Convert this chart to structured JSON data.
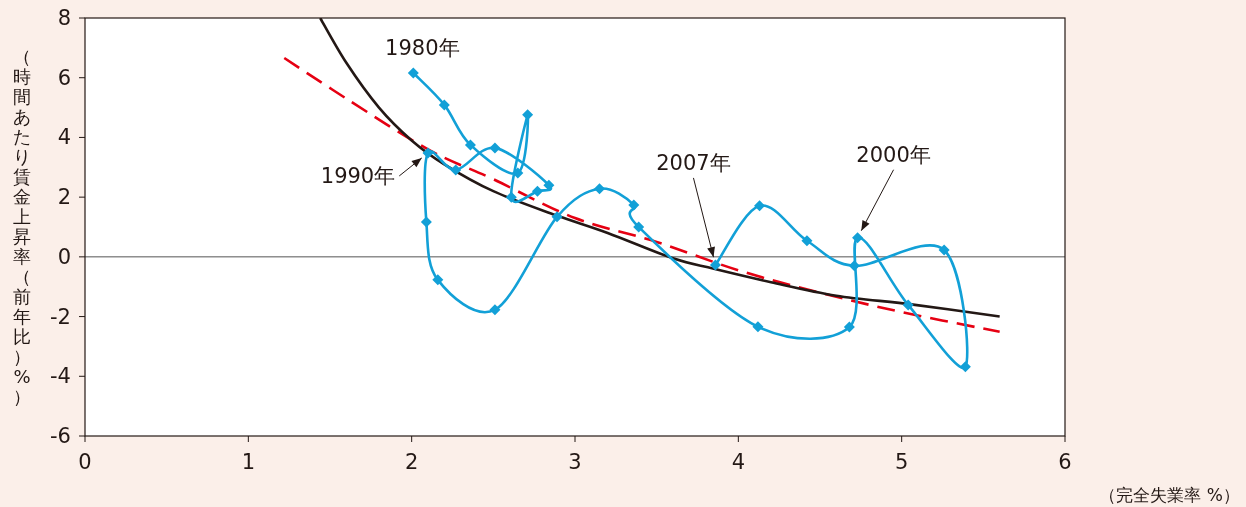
{
  "chart_data": {
    "type": "line",
    "xlabel": "（完全失業率 %）",
    "ylabel": "（時間あたり賃金上昇率（前年比）%）",
    "xlim": [
      0,
      6
    ],
    "ylim": [
      -6,
      8
    ],
    "xticks": [
      0,
      1,
      2,
      3,
      4,
      5,
      6
    ],
    "yticks": [
      -6,
      -4,
      -2,
      0,
      2,
      4,
      6,
      8
    ],
    "grid": false,
    "ref_lines": [
      {
        "axis": "y",
        "value": 0,
        "color": "#555555"
      }
    ],
    "series": [
      {
        "color": "#12a0d7",
        "marker": "diamond",
        "line_style": "solid",
        "x": [
          2.01,
          2.2,
          2.36,
          2.65,
          2.71,
          2.61,
          2.77,
          2.84,
          2.51,
          2.27,
          2.1,
          2.09,
          2.16,
          2.51,
          2.89,
          3.15,
          3.36,
          3.39,
          4.12,
          4.68,
          4.73,
          5.04,
          5.39,
          5.26,
          4.71,
          4.42,
          4.13,
          3.86
        ],
        "values": [
          6.16,
          5.09,
          3.75,
          2.81,
          4.76,
          2.0,
          2.2,
          2.4,
          3.65,
          2.91,
          3.48,
          1.17,
          -0.77,
          -1.77,
          1.34,
          2.28,
          1.74,
          1.0,
          -2.34,
          -2.35,
          0.64,
          -1.61,
          -3.68,
          0.23,
          -0.3,
          0.54,
          1.71,
          -0.27
        ]
      },
      {
        "color": "#231815",
        "marker": "none",
        "line_style": "solid",
        "x": [
          1.44,
          1.6,
          1.8,
          2.0,
          2.2,
          2.5,
          2.88,
          3.2,
          3.6,
          3.85,
          4.2,
          4.6,
          5.07,
          5.6
        ],
        "values": [
          8,
          6.5,
          5.0,
          3.9,
          3.1,
          2.2,
          1.4,
          0.8,
          -0.05,
          -0.4,
          -0.85,
          -1.3,
          -1.6,
          -2.0
        ]
      },
      {
        "color": "#e60012",
        "marker": "none",
        "line_style": "dashed",
        "x": [
          1.22,
          1.6,
          2.1,
          2.5,
          3.0,
          3.5,
          4.0,
          4.5,
          5.0,
          5.6
        ],
        "values": [
          6.66,
          5.3,
          3.6,
          2.6,
          1.3,
          0.5,
          -0.45,
          -1.2,
          -1.85,
          -2.51
        ]
      }
    ],
    "annotations": [
      {
        "text": "1980年",
        "x": 2.01,
        "y": 6.16
      },
      {
        "text": "1990年",
        "x": 2.1,
        "y": 3.48
      },
      {
        "text": "2007年",
        "x": 3.86,
        "y": -0.27
      },
      {
        "text": "2000年",
        "x": 4.73,
        "y": 0.64
      }
    ]
  }
}
